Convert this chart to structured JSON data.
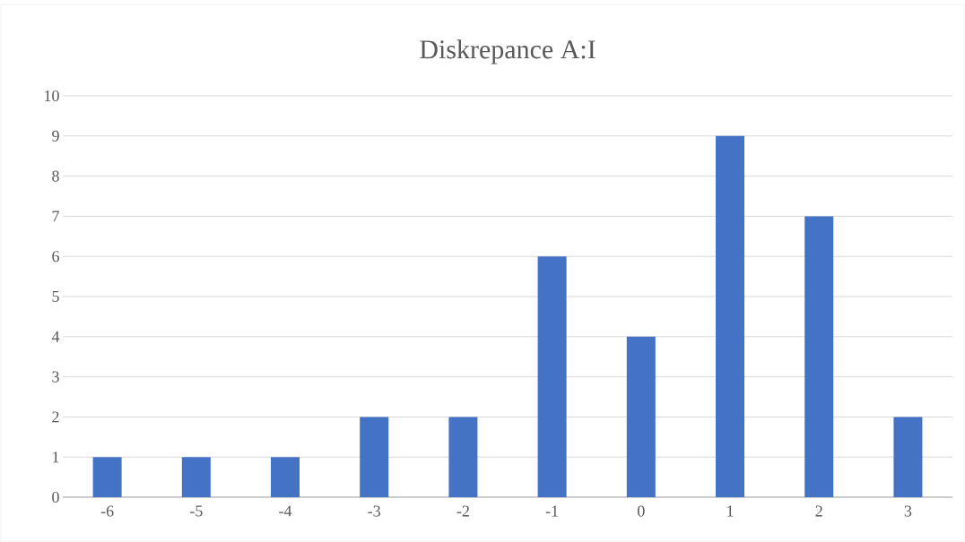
{
  "chart_data": {
    "type": "bar",
    "title": "Diskrepance A:I",
    "categories": [
      "-6",
      "-5",
      "-4",
      "-3",
      "-2",
      "-1",
      "0",
      "1",
      "2",
      "3"
    ],
    "values": [
      1,
      1,
      1,
      2,
      2,
      6,
      4,
      9,
      7,
      2
    ],
    "color": "#4472c4",
    "ylim": [
      0,
      10
    ],
    "yticks": [
      0,
      1,
      2,
      3,
      4,
      5,
      6,
      7,
      8,
      9,
      10
    ],
    "grid": "y"
  }
}
